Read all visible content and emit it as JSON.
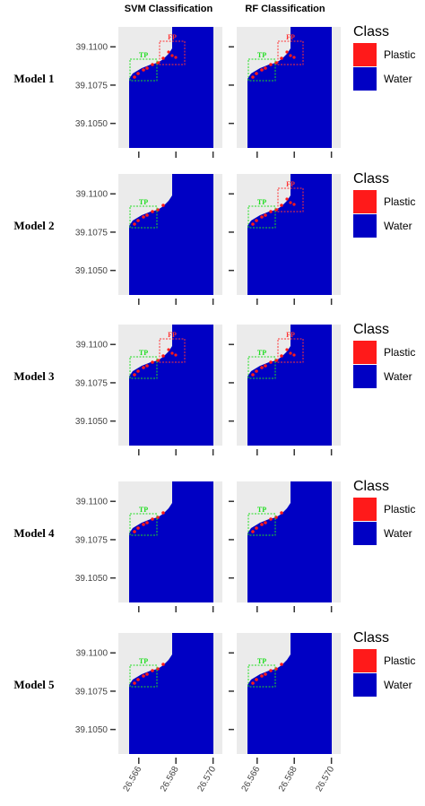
{
  "columns": [
    "SVM Classification",
    "RF Classification"
  ],
  "rows": [
    {
      "label": "Model 1",
      "panels": [
        {
          "boxes": [
            "TP",
            "FP"
          ]
        },
        {
          "boxes": [
            "TP",
            "FP"
          ]
        }
      ]
    },
    {
      "label": "Model 2",
      "panels": [
        {
          "boxes": [
            "TP"
          ]
        },
        {
          "boxes": [
            "TP",
            "FP"
          ]
        }
      ]
    },
    {
      "label": "Model 3",
      "panels": [
        {
          "boxes": [
            "TP",
            "FP"
          ]
        },
        {
          "boxes": [
            "TP",
            "FP"
          ]
        }
      ]
    },
    {
      "label": "Model 4",
      "panels": [
        {
          "boxes": [
            "TP"
          ]
        },
        {
          "boxes": [
            "TP"
          ]
        }
      ]
    },
    {
      "label": "Model 5",
      "panels": [
        {
          "boxes": [
            "TP"
          ]
        },
        {
          "boxes": [
            "TP"
          ]
        }
      ]
    }
  ],
  "legend": {
    "title": "Class",
    "items": [
      {
        "name": "Plastic",
        "color": "#ff1a1a"
      },
      {
        "name": "Water",
        "color": "#0000c4"
      }
    ]
  },
  "ylim": [
    39.1034,
    39.1113
  ],
  "yticks": [
    {
      "value": 39.105,
      "label": "39.1050"
    },
    {
      "value": 39.1075,
      "label": "39.1075"
    },
    {
      "value": 39.11,
      "label": "39.1100"
    }
  ],
  "xlim": [
    26.5649,
    26.5705
  ],
  "xticks": [
    26.566,
    26.568,
    {
      "value": 26.57,
      "label": "26.570"
    }
  ]
}
